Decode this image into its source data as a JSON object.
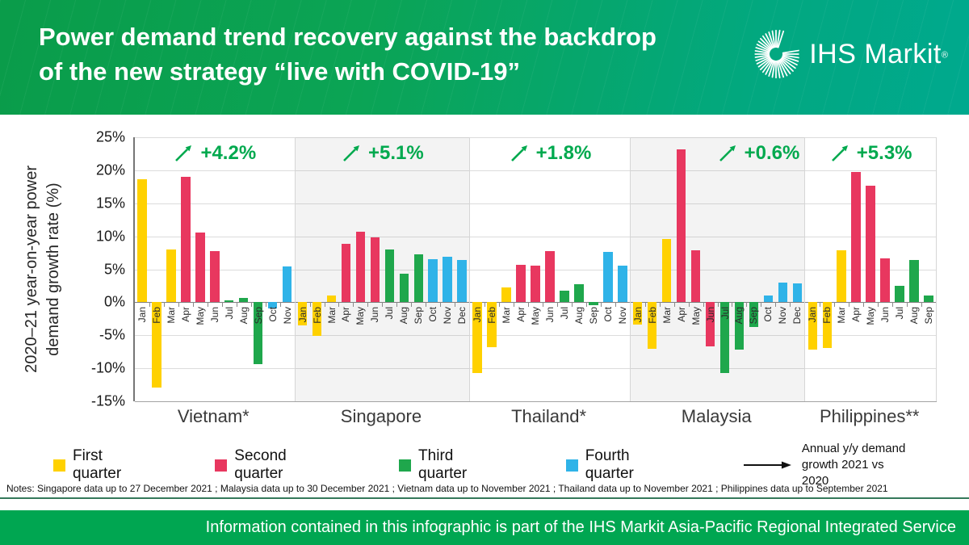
{
  "header": {
    "title_line1": "Power demand trend recovery against the backdrop",
    "title_line2": "of the new strategy “live with COVID-19”",
    "brand": "IHS Markit",
    "brand_reg": "®"
  },
  "chart_data": {
    "type": "bar",
    "ylabel_line1": "2020–21 year-on-year power",
    "ylabel_line2": "demand growth rate (%)",
    "ylim": [
      -15,
      25
    ],
    "ytick_step": 5,
    "yticks": [
      "25%",
      "20%",
      "15%",
      "10%",
      "5%",
      "0%",
      "-5%",
      "-10%",
      "-15%"
    ],
    "grid": true,
    "quarter_colors": {
      "1": "#FFD100",
      "2": "#E8375F",
      "3": "#1FA74C",
      "4": "#2FB3E8"
    },
    "annotation_color": "#00A94E",
    "panels": [
      {
        "country": "Vietnam*",
        "annual_growth": "+4.2%",
        "shaded": false,
        "annotation_align": "center",
        "months": [
          {
            "m": "Jan",
            "v": 18.6,
            "q": 1
          },
          {
            "m": "Feb",
            "v": -12.9,
            "q": 1
          },
          {
            "m": "Mar",
            "v": 8.0,
            "q": 1
          },
          {
            "m": "Apr",
            "v": 19.0,
            "q": 2
          },
          {
            "m": "May",
            "v": 10.6,
            "q": 2
          },
          {
            "m": "Jun",
            "v": 7.8,
            "q": 2
          },
          {
            "m": "Jul",
            "v": 0.3,
            "q": 3
          },
          {
            "m": "Aug",
            "v": 0.6,
            "q": 3
          },
          {
            "m": "Sep",
            "v": -9.4,
            "q": 3
          },
          {
            "m": "Oct",
            "v": -0.9,
            "q": 4
          },
          {
            "m": "Nov",
            "v": 5.4,
            "q": 4
          }
        ]
      },
      {
        "country": "Singapore",
        "annual_growth": "+5.1%",
        "shaded": true,
        "annotation_align": "center",
        "months": [
          {
            "m": "Jan",
            "v": -3.5,
            "q": 1
          },
          {
            "m": "Feb",
            "v": -5.1,
            "q": 1
          },
          {
            "m": "Mar",
            "v": 1.0,
            "q": 1
          },
          {
            "m": "Apr",
            "v": 8.9,
            "q": 2
          },
          {
            "m": "May",
            "v": 10.7,
            "q": 2
          },
          {
            "m": "Jun",
            "v": 9.8,
            "q": 2
          },
          {
            "m": "Jul",
            "v": 8.0,
            "q": 3
          },
          {
            "m": "Aug",
            "v": 4.3,
            "q": 3
          },
          {
            "m": "Sep",
            "v": 7.3,
            "q": 3
          },
          {
            "m": "Oct",
            "v": 6.5,
            "q": 4
          },
          {
            "m": "Nov",
            "v": 6.9,
            "q": 4
          },
          {
            "m": "Dec",
            "v": 6.4,
            "q": 4
          }
        ]
      },
      {
        "country": "Thailand*",
        "annual_growth": "+1.8%",
        "shaded": false,
        "annotation_align": "center",
        "months": [
          {
            "m": "Jan",
            "v": -10.7,
            "q": 1
          },
          {
            "m": "Feb",
            "v": -6.8,
            "q": 1
          },
          {
            "m": "Mar",
            "v": 2.2,
            "q": 1
          },
          {
            "m": "Apr",
            "v": 5.7,
            "q": 2
          },
          {
            "m": "May",
            "v": 5.5,
            "q": 2
          },
          {
            "m": "Jun",
            "v": 7.7,
            "q": 2
          },
          {
            "m": "Jul",
            "v": 1.8,
            "q": 3
          },
          {
            "m": "Aug",
            "v": 2.7,
            "q": 3
          },
          {
            "m": "Sep",
            "v": -0.5,
            "q": 3
          },
          {
            "m": "Oct",
            "v": 7.6,
            "q": 4
          },
          {
            "m": "Nov",
            "v": 5.5,
            "q": 4
          }
        ]
      },
      {
        "country": "Malaysia",
        "annual_growth": "+0.6%",
        "shaded": true,
        "annotation_align": "right",
        "months": [
          {
            "m": "Jan",
            "v": -3.4,
            "q": 1
          },
          {
            "m": "Feb",
            "v": -7.1,
            "q": 1
          },
          {
            "m": "Mar",
            "v": 9.6,
            "q": 1
          },
          {
            "m": "Apr",
            "v": 23.2,
            "q": 2
          },
          {
            "m": "May",
            "v": 7.9,
            "q": 2
          },
          {
            "m": "Jun",
            "v": -6.7,
            "q": 2
          },
          {
            "m": "Jul",
            "v": -10.7,
            "q": 3
          },
          {
            "m": "Aug",
            "v": -7.2,
            "q": 3
          },
          {
            "m": "Sep",
            "v": -3.7,
            "q": 3
          },
          {
            "m": "Oct",
            "v": 1.0,
            "q": 4
          },
          {
            "m": "Nov",
            "v": 3.0,
            "q": 4
          },
          {
            "m": "Dec",
            "v": 2.8,
            "q": 4
          }
        ]
      },
      {
        "country": "Philippines**",
        "annual_growth": "+5.3%",
        "shaded": false,
        "annotation_align": "center",
        "months": [
          {
            "m": "Jan",
            "v": -7.2,
            "q": 1
          },
          {
            "m": "Feb",
            "v": -6.9,
            "q": 1
          },
          {
            "m": "Mar",
            "v": 7.9,
            "q": 1
          },
          {
            "m": "Apr",
            "v": 19.7,
            "q": 2
          },
          {
            "m": "May",
            "v": 17.7,
            "q": 2
          },
          {
            "m": "Jun",
            "v": 6.7,
            "q": 2
          },
          {
            "m": "Jul",
            "v": 2.5,
            "q": 3
          },
          {
            "m": "Aug",
            "v": 6.4,
            "q": 3
          },
          {
            "m": "Sep",
            "v": 1.0,
            "q": 3
          }
        ]
      }
    ]
  },
  "legend": {
    "items": [
      {
        "label": "First quarter",
        "color": "#FFD100"
      },
      {
        "label": "Second quarter",
        "color": "#E8375F"
      },
      {
        "label": "Third quarter",
        "color": "#1FA74C"
      },
      {
        "label": "Fourth quarter",
        "color": "#2FB3E8"
      }
    ],
    "arrow_note_line1": "Annual y/y demand",
    "arrow_note_line2": "growth 2021 vs 2020"
  },
  "notes": "Notes: Singapore data up to 27 December 2021 ; Malaysia data up to 30 December 2021 ; Vietnam data up to November 2021 ; Thailand data up to November 2021 ; Philippines data up to September 2021",
  "footer": {
    "text": "Information contained in this infographic is part of the IHS Markit Asia-Pacific Regional Integrated Service"
  }
}
